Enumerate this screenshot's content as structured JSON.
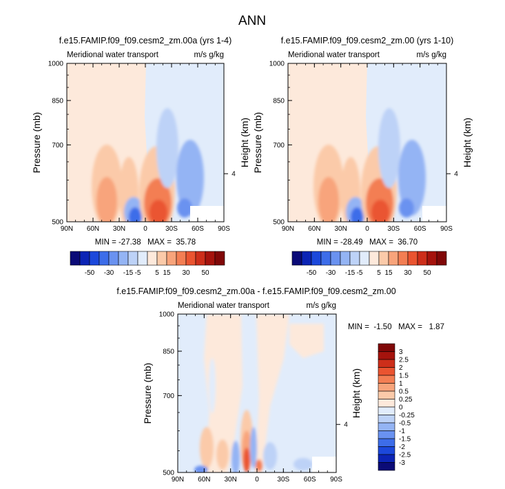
{
  "figure_title": "ANN",
  "chart_data": [
    {
      "type": "heatmap",
      "id": "left",
      "title": "f.e15.FAMIP.f09_f09.cesm2_zm.00a (yrs 1-4)",
      "subtitle_left": "Meridional water transport",
      "subtitle_right": "m/s g/kg",
      "ylabel": "Pressure (mb)",
      "xlabel": "",
      "x_ticks": [
        "90N",
        "60N",
        "30N",
        "0",
        "30S",
        "60S",
        "90S"
      ],
      "x_values": [
        90,
        60,
        30,
        0,
        -30,
        -60,
        -90
      ],
      "xlim": [
        90,
        -90
      ],
      "y_ticks": [
        {
          "label": "500",
          "p": 500
        },
        {
          "label": "700",
          "p": 700
        },
        {
          "label": "850",
          "p": 850
        },
        {
          "label": "1000",
          "p": 1000
        }
      ],
      "ylim_mb": [
        1000,
        500
      ],
      "y_scale": "log",
      "right_tick_label": "4",
      "right_tick_p": 617,
      "stats": "MIN = -27.38   MAX =  35.78",
      "min": -27.38,
      "max": 35.78
    },
    {
      "type": "heatmap",
      "id": "right",
      "title": "f.e15.FAMIP.f09_f09.cesm2_zm.00 (yrs 1-10)",
      "subtitle_left": "Meridional water transport",
      "subtitle_right": "m/s g/kg",
      "ylabel": "Pressure (mb)",
      "ylabel_right": "Height (km)",
      "x_ticks": [
        "90N",
        "60N",
        "30N",
        "0",
        "30S",
        "60S",
        "90S"
      ],
      "x_values": [
        90,
        60,
        30,
        0,
        -30,
        -60,
        -90
      ],
      "xlim": [
        90,
        -90
      ],
      "y_ticks": [
        {
          "label": "500",
          "p": 500
        },
        {
          "label": "700",
          "p": 700
        },
        {
          "label": "850",
          "p": 850
        },
        {
          "label": "1000",
          "p": 1000
        }
      ],
      "ylim_mb": [
        1000,
        500
      ],
      "y_scale": "log",
      "right_tick_label": "4",
      "right_tick_p": 617,
      "stats": "MIN = -28.49   MAX =  36.70",
      "min": -28.49,
      "max": 36.7
    },
    {
      "type": "heatmap",
      "id": "diff",
      "title": "f.e15.FAMIP.f09_f09.cesm2_zm.00a - f.e15.FAMIP.f09_f09.cesm2_zm.00",
      "subtitle_left": "Meridional water transport",
      "subtitle_right": "m/s g/kg",
      "ylabel": "Pressure (mb)",
      "ylabel_right": "Height (km)",
      "x_ticks": [
        "90N",
        "60N",
        "30N",
        "0",
        "30S",
        "60S",
        "90S"
      ],
      "x_values": [
        90,
        60,
        30,
        0,
        -30,
        -60,
        -90
      ],
      "xlim": [
        90,
        -90
      ],
      "y_ticks": [
        {
          "label": "500",
          "p": 500
        },
        {
          "label": "700",
          "p": 700
        },
        {
          "label": "850",
          "p": 850
        },
        {
          "label": "1000",
          "p": 1000
        }
      ],
      "ylim_mb": [
        1000,
        500
      ],
      "y_scale": "log",
      "right_tick_label": "4",
      "right_tick_p": 617,
      "stats": "MIN =  -1.50   MAX =   1.87",
      "min": -1.5,
      "max": 1.87
    }
  ],
  "colorbar_main": {
    "levels": [
      "-50",
      "-30",
      "-15",
      "-5",
      "5",
      "15",
      "30",
      "50"
    ],
    "colors": [
      "#0b0b77",
      "#0c24b5",
      "#1c48db",
      "#3d6de9",
      "#6a92f0",
      "#94b4f4",
      "#bdd2f7",
      "#e1ecfb",
      "#fde9db",
      "#fbcaa9",
      "#f8a47b",
      "#f37e53",
      "#ea5430",
      "#cd2e1a",
      "#a5130d",
      "#800808"
    ]
  },
  "colorbar_diff": {
    "levels": [
      "3",
      "2.5",
      "2",
      "1.5",
      "1",
      "0.5",
      "0.25",
      "0",
      "-0.25",
      "-0.5",
      "-1",
      "-1.5",
      "-2",
      "-2.5",
      "-3"
    ],
    "colors": [
      "#800808",
      "#a5130d",
      "#cd2e1a",
      "#ea5430",
      "#f37e53",
      "#f8a47b",
      "#fbcaa9",
      "#fde9db",
      "#e1ecfb",
      "#bdd2f7",
      "#94b4f4",
      "#6a92f0",
      "#3d6de9",
      "#1c48db",
      "#0c24b5",
      "#0b0b77"
    ]
  }
}
